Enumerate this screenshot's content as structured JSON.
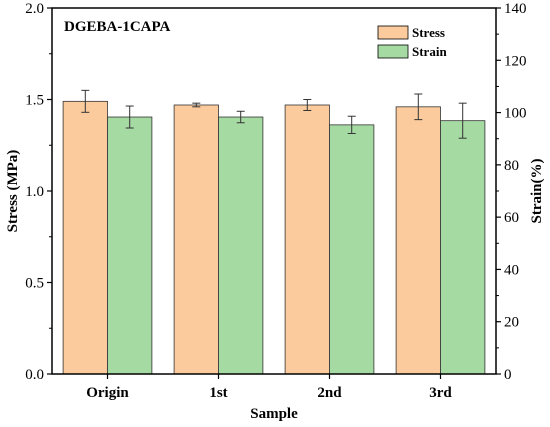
{
  "chart_data": {
    "type": "bar",
    "annotation": "DGEBA-1CAPA",
    "xlabel": "Sample",
    "ylabel_left": "Stress (MPa)",
    "ylabel_right": "Strain(%)",
    "categories": [
      "Origin",
      "1st",
      "2nd",
      "3rd"
    ],
    "left_axis": {
      "ylim": [
        0.0,
        2.0
      ],
      "ticks": [
        "0.0",
        "0.5",
        "1.0",
        "1.5",
        "2.0"
      ]
    },
    "right_axis": {
      "ylim": [
        0,
        140
      ],
      "ticks": [
        "0",
        "20",
        "40",
        "60",
        "80",
        "100",
        "120",
        "140"
      ]
    },
    "series": [
      {
        "name": "Stress",
        "axis": "left",
        "color": "#FBCB9E",
        "values": [
          1.49,
          1.47,
          1.47,
          1.46
        ],
        "errors": [
          0.06,
          0.01,
          0.03,
          0.07
        ]
      },
      {
        "name": "Strain",
        "axis": "right",
        "color": "#A6DAA3",
        "values": [
          98.3,
          98.3,
          95.3,
          96.9
        ],
        "errors": [
          4.2,
          2.2,
          3.3,
          6.7
        ]
      }
    ],
    "legend_position": "top-right",
    "grid": false
  }
}
